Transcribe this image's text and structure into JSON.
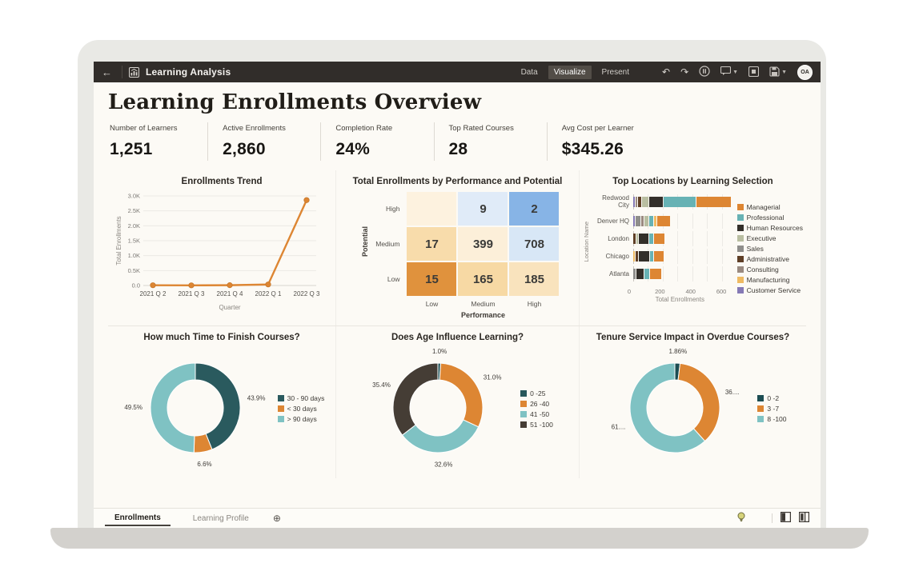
{
  "topbar": {
    "title": "Learning Analysis",
    "tabs": [
      {
        "label": "Data",
        "active": false
      },
      {
        "label": "Visualize",
        "active": true
      },
      {
        "label": "Present",
        "active": false
      }
    ],
    "avatar": "OA"
  },
  "icons": {
    "back": "←",
    "undo": "↶",
    "redo": "↷",
    "add_canvas": "⊕"
  },
  "page": {
    "title": "Learning Enrollments Overview"
  },
  "kpis": [
    {
      "label": "Number of Learners",
      "value": "1,251"
    },
    {
      "label": "Active Enrollments",
      "value": "2,860"
    },
    {
      "label": "Completion Rate",
      "value": "24%"
    },
    {
      "label": "Top Rated Courses",
      "value": "28"
    },
    {
      "label": "Avg Cost per Learner",
      "value": "$345.26"
    }
  ],
  "chart_data": [
    {
      "type": "line",
      "title": "Enrollments Trend",
      "xlabel": "Quarter",
      "ylabel": "Total Enrollments",
      "categories": [
        "2021 Q 2",
        "2021 Q 3",
        "2021 Q 4",
        "2022 Q 1",
        "2022 Q 3"
      ],
      "values": [
        8,
        5,
        10,
        35,
        2860
      ],
      "ylim": [
        0,
        3000
      ],
      "yticks": [
        0,
        500,
        1000,
        1500,
        2000,
        2500,
        3000
      ],
      "ytick_labels": [
        "0.0",
        "0.5K",
        "1.0K",
        "1.5K",
        "2.0K",
        "2.5K",
        "3.0K"
      ],
      "color": "#dd8633",
      "grid": true
    },
    {
      "type": "heatmap",
      "title": "Total Enrollments by Performance and Potential",
      "row_axis": "Potential",
      "col_axis": "Performance",
      "rows": [
        "High",
        "Medium",
        "Low"
      ],
      "cols": [
        "Low",
        "Medium",
        "High"
      ],
      "cells": [
        [
          null,
          9,
          2
        ],
        [
          17,
          399,
          708
        ],
        [
          15,
          165,
          185
        ]
      ],
      "cell_colors": [
        [
          "#fdf2df",
          "#e0ebf8",
          "#87b4e6"
        ],
        [
          "#f8dcab",
          "#fcefd9",
          "#d8e7f6"
        ],
        [
          "#e0923d",
          "#f7d9a4",
          "#f9e3bd"
        ]
      ]
    },
    {
      "type": "stacked-bar-h",
      "title": "Top Locations by Learning Selection",
      "xlabel": "Total Enrollments",
      "ylabel": "Location Name",
      "xlim": [
        0,
        660
      ],
      "xticks": [
        0,
        200,
        400,
        600
      ],
      "legend": [
        {
          "label": "Managerial",
          "color": "#dd8633"
        },
        {
          "label": "Professional",
          "color": "#67b2b4"
        },
        {
          "label": "Human Resources",
          "color": "#332f2a"
        },
        {
          "label": "Executive",
          "color": "#b9bea1"
        },
        {
          "label": "Sales",
          "color": "#8f8e8b"
        },
        {
          "label": "Administrative",
          "color": "#5f3f26"
        },
        {
          "label": "Consulting",
          "color": "#9a8a80"
        },
        {
          "label": "Manufacturing",
          "color": "#efba62"
        },
        {
          "label": "Customer Service",
          "color": "#8579b5"
        }
      ],
      "bars": [
        {
          "label": "Redwood City",
          "segments": [
            [
              "Customer Service",
              10
            ],
            [
              "Consulting",
              12
            ],
            [
              "Administrative",
              20
            ],
            [
              "Executive",
              45
            ],
            [
              "Human Resources",
              95
            ],
            [
              "Professional",
              215
            ],
            [
              "Managerial",
              233
            ]
          ]
        },
        {
          "label": "Denver HQ",
          "segments": [
            [
              "Customer Service",
              12
            ],
            [
              "Sales",
              30
            ],
            [
              "Consulting",
              18
            ],
            [
              "Executive",
              25
            ],
            [
              "Professional",
              28
            ],
            [
              "Manufacturing",
              17
            ],
            [
              "Managerial",
              85
            ]
          ]
        },
        {
          "label": "London",
          "segments": [
            [
              "Administrative",
              15
            ],
            [
              "Executive",
              12
            ],
            [
              "Human Resources",
              68
            ],
            [
              "Professional",
              25
            ],
            [
              "Managerial",
              70
            ]
          ]
        },
        {
          "label": "Chicago",
          "segments": [
            [
              "Manufacturing",
              12
            ],
            [
              "Administrative",
              18
            ],
            [
              "Human Resources",
              70
            ],
            [
              "Professional",
              22
            ],
            [
              "Managerial",
              63
            ]
          ]
        },
        {
          "label": "Atlanta",
          "segments": [
            [
              "Sales",
              15
            ],
            [
              "Human Resources",
              52
            ],
            [
              "Professional",
              30
            ],
            [
              "Managerial",
              78
            ]
          ]
        }
      ]
    },
    {
      "type": "donut",
      "title": "How much Time to Finish Courses?",
      "slices": [
        {
          "label": "30 - 90 days",
          "value": 43.9,
          "display": "43.9%",
          "color": "#2a5a5e"
        },
        {
          "label": "< 30 days",
          "value": 6.6,
          "display": "6.6%",
          "color": "#dd8633"
        },
        {
          "label": "> 90 days",
          "value": 49.5,
          "display": "49.5%",
          "color": "#7fc2c3"
        }
      ]
    },
    {
      "type": "donut",
      "title": "Does Age Influence Learning?",
      "slices": [
        {
          "label": "0 -25",
          "value": 1.0,
          "display": "1.0%",
          "color": "#27585c"
        },
        {
          "label": "26 -40",
          "value": 31.0,
          "display": "31.0%",
          "color": "#dd8633"
        },
        {
          "label": "41 -50",
          "value": 32.6,
          "display": "32.6%",
          "color": "#7fc2c3"
        },
        {
          "label": "51 -100",
          "value": 35.4,
          "display": "35.4%",
          "color": "#453d35"
        }
      ]
    },
    {
      "type": "donut",
      "title": "Tenure Service Impact in Overdue Courses?",
      "slices": [
        {
          "label": "0 -2",
          "value": 1.86,
          "display": "1.86%",
          "color": "#1c4d52"
        },
        {
          "label": "3 -7",
          "value": 36.44,
          "display": "36....",
          "color": "#dd8633"
        },
        {
          "label": "8 -100",
          "value": 61.7,
          "display": "61....",
          "color": "#7fc2c3"
        }
      ]
    }
  ],
  "bottombar": {
    "tabs": [
      {
        "label": "Enrollments",
        "active": true
      },
      {
        "label": "Learning Profile",
        "active": false
      }
    ]
  }
}
